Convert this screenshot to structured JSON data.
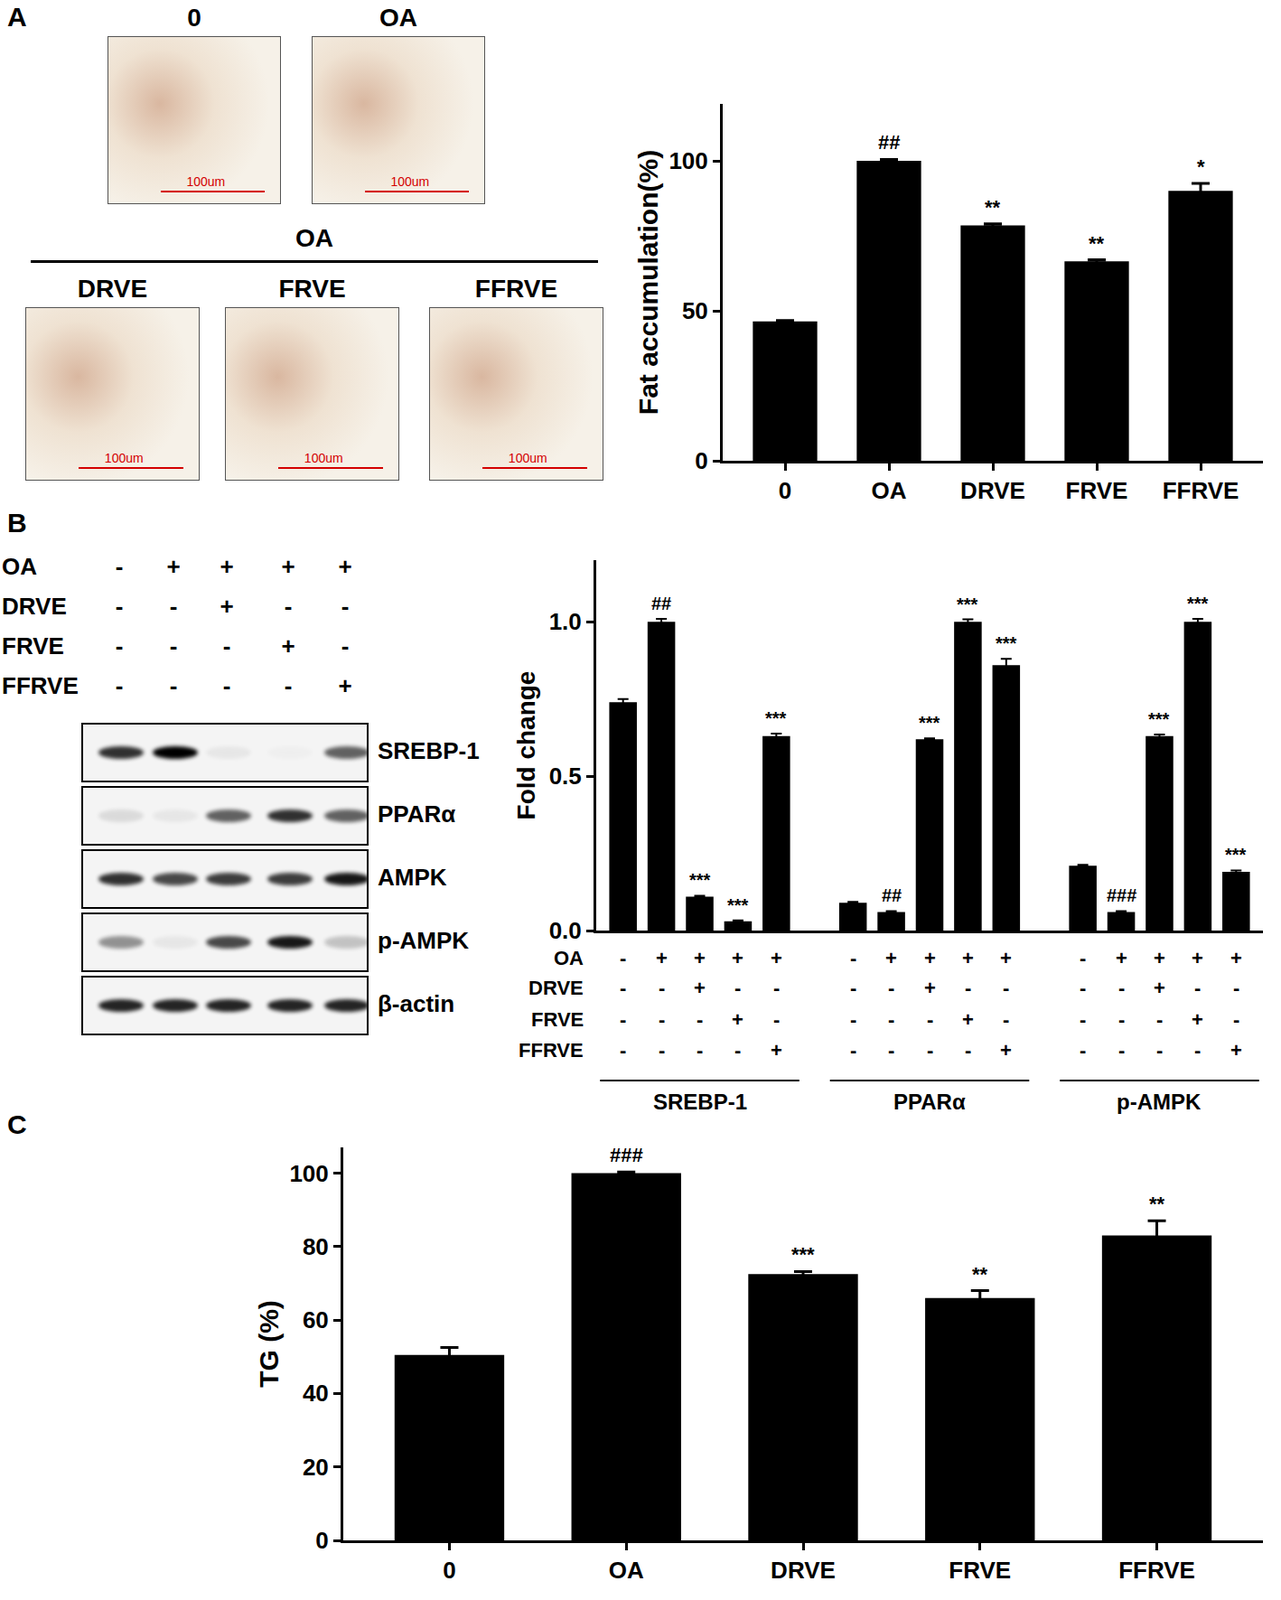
{
  "figure": {
    "panel_A": {
      "letter": "A",
      "images": [
        {
          "title": "0",
          "scale": "100um"
        },
        {
          "title": "OA",
          "scale": "100um"
        }
      ],
      "group_title": "OA",
      "group_images": [
        {
          "title": "DRVE",
          "scale": "100um"
        },
        {
          "title": "FRVE",
          "scale": "100um"
        },
        {
          "title": "FFRVE",
          "scale": "100um"
        }
      ]
    },
    "panel_B": {
      "letter": "B",
      "treatments": [
        {
          "name": "OA",
          "signs": [
            "-",
            "+",
            "+",
            "+",
            "+"
          ]
        },
        {
          "name": "DRVE",
          "signs": [
            "-",
            "-",
            "+",
            "-",
            "-"
          ]
        },
        {
          "name": "FRVE",
          "signs": [
            "-",
            "-",
            "-",
            "+",
            "-"
          ]
        },
        {
          "name": "FFRVE",
          "signs": [
            "-",
            "-",
            "-",
            "-",
            "+"
          ]
        }
      ],
      "blot_rows": [
        {
          "name": "SREBP-1",
          "bands": [
            0.8,
            1.0,
            0.05,
            0.02,
            0.6
          ]
        },
        {
          "name": "PPARα",
          "bands": [
            0.1,
            0.05,
            0.6,
            0.8,
            0.6
          ]
        },
        {
          "name": "AMPK",
          "bands": [
            0.8,
            0.7,
            0.75,
            0.75,
            0.9
          ]
        },
        {
          "name": "p-AMPK",
          "bands": [
            0.4,
            0.05,
            0.7,
            0.9,
            0.2
          ]
        },
        {
          "name": "β-actin",
          "bands": [
            0.85,
            0.85,
            0.85,
            0.85,
            0.85
          ]
        }
      ]
    },
    "panel_C": {
      "letter": "C"
    }
  },
  "chart_data": [
    {
      "type": "bar",
      "ylabel": "Fat accumulation(%)",
      "categories": [
        "0",
        "OA",
        "DRVE",
        "FRVE",
        "FFRVE"
      ],
      "values": [
        46.5,
        100,
        78.5,
        66.5,
        90
      ],
      "errors": [
        0.3,
        0.5,
        0.5,
        0.5,
        2.5
      ],
      "significance": [
        null,
        "##",
        "**",
        "**",
        "*"
      ],
      "color": "#000000",
      "ylim": [
        0,
        119
      ],
      "yticks": [
        0,
        50,
        100
      ],
      "grid": false
    },
    {
      "type": "bar",
      "ylabel": "Fold change",
      "tick_labels": "y",
      "treatments": [
        {
          "name": "OA",
          "signs": [
            "-",
            "+",
            "+",
            "+",
            "+"
          ]
        },
        {
          "name": "DRVE",
          "signs": [
            "-",
            "-",
            "+",
            "-",
            "-"
          ]
        },
        {
          "name": "FRVE",
          "signs": [
            "-",
            "-",
            "-",
            "+",
            "-"
          ]
        },
        {
          "name": "FFRVE",
          "signs": [
            "-",
            "-",
            "-",
            "-",
            "+"
          ]
        }
      ],
      "groups": [
        {
          "name": "SREBP-1",
          "values": [
            0.74,
            1.0,
            0.11,
            0.03,
            0.63
          ],
          "errors": [
            0.01,
            0.01,
            0.003,
            0.003,
            0.008
          ],
          "significance": [
            null,
            "##",
            "***",
            "***",
            "***"
          ]
        },
        {
          "name": "PPARα",
          "values": [
            0.09,
            0.06,
            0.62,
            1.0,
            0.86
          ],
          "errors": [
            0.003,
            0.003,
            0.003,
            0.008,
            0.02
          ],
          "significance": [
            null,
            "##",
            "***",
            "***",
            "***"
          ]
        },
        {
          "name": "p-AMPK",
          "values": [
            0.21,
            0.06,
            0.63,
            1.0,
            0.19
          ],
          "errors": [
            0.003,
            0.003,
            0.005,
            0.01,
            0.005
          ],
          "significance": [
            null,
            "###",
            "***",
            "***",
            "***"
          ]
        }
      ],
      "color": "#000000",
      "ylim": [
        0,
        1.2
      ],
      "yticks": [
        {
          "value": 0,
          "label": "0.0"
        },
        0.5,
        {
          "value": 1,
          "label": "1.0"
        }
      ],
      "grid": false
    },
    {
      "type": "bar",
      "ylabel": "TG (%)",
      "categories": [
        "0",
        "OA",
        "DRVE",
        "FRVE",
        "FFRVE"
      ],
      "values": [
        50.5,
        100,
        72.5,
        66,
        83
      ],
      "errors": [
        2,
        0.3,
        0.7,
        2,
        4
      ],
      "significance": [
        null,
        "###",
        "***",
        "**",
        "**"
      ],
      "color": "#000000",
      "ylim": [
        0,
        107
      ],
      "yticks": [
        0,
        20,
        40,
        60,
        80,
        100
      ],
      "grid": false
    }
  ]
}
